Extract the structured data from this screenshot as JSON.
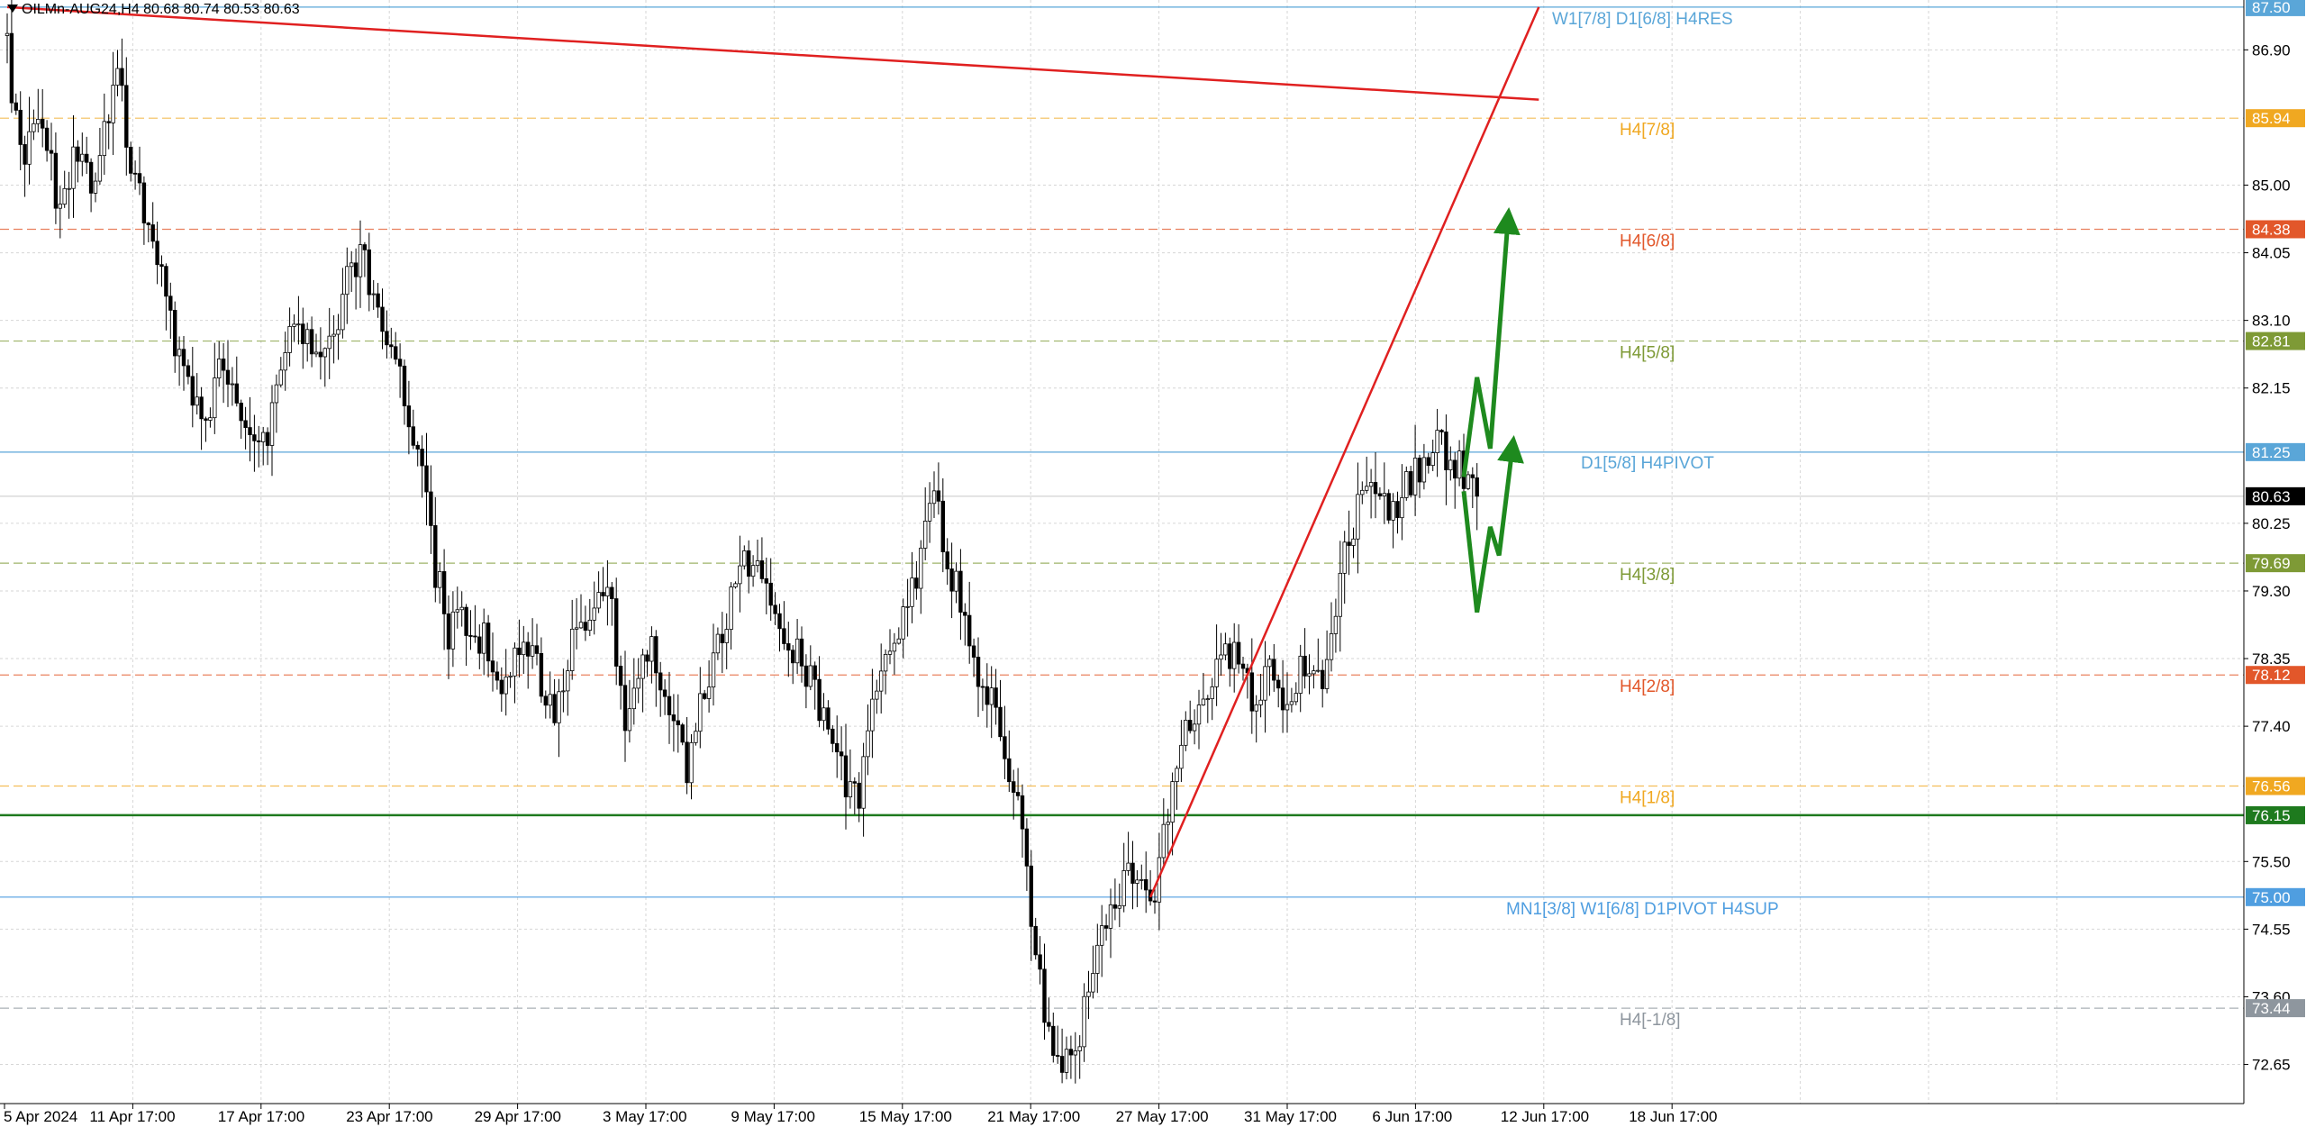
{
  "header": {
    "symbol_line": "OILMn-AUG24,H4  80.68 80.74 80.53 80.63"
  },
  "chart_data": {
    "type": "candlestick",
    "symbol": "OILMn-AUG24",
    "timeframe": "H4",
    "ohlc_current": {
      "open": 80.68,
      "high": 80.74,
      "low": 80.53,
      "close": 80.63
    },
    "current_price_label": "80.63",
    "ylim": [
      72.1,
      87.6
    ],
    "price_ticks": [
      "86.90",
      "85.00",
      "84.05",
      "83.10",
      "82.15",
      "80.25",
      "79.30",
      "78.35",
      "77.40",
      "75.50",
      "74.55",
      "73.60",
      "72.65"
    ],
    "time_ticks": [
      "5 Apr 2024",
      "11 Apr 17:00",
      "17 Apr 17:00",
      "23 Apr 17:00",
      "29 Apr 17:00",
      "3 May 17:00",
      "9 May 17:00",
      "15 May 17:00",
      "21 May 17:00",
      "27 May 17:00",
      "31 May 17:00",
      "6 Jun 17:00",
      "12 Jun 17:00",
      "18 Jun 17:00"
    ],
    "price_path": [
      [
        0,
        86.9
      ],
      [
        3,
        85.4
      ],
      [
        8,
        85.9
      ],
      [
        12,
        84.6
      ],
      [
        16,
        85.5
      ],
      [
        19,
        84.9
      ],
      [
        22,
        85.7
      ],
      [
        25,
        86.8
      ],
      [
        28,
        85.0
      ],
      [
        32,
        84.6
      ],
      [
        36,
        83.3
      ],
      [
        40,
        82.2
      ],
      [
        44,
        81.6
      ],
      [
        48,
        82.3
      ],
      [
        52,
        81.9
      ],
      [
        56,
        81.3
      ],
      [
        59,
        81.6
      ],
      [
        62,
        82.6
      ],
      [
        65,
        83.2
      ],
      [
        68,
        82.8
      ],
      [
        71,
        82.4
      ],
      [
        74,
        82.9
      ],
      [
        77,
        83.8
      ],
      [
        80,
        84.0
      ],
      [
        84,
        83.4
      ],
      [
        88,
        82.6
      ],
      [
        91,
        81.8
      ],
      [
        94,
        80.9
      ],
      [
        97,
        79.6
      ],
      [
        100,
        78.7
      ],
      [
        104,
        78.9
      ],
      [
        108,
        78.6
      ],
      [
        112,
        77.9
      ],
      [
        116,
        78.5
      ],
      [
        120,
        78.2
      ],
      [
        124,
        77.6
      ],
      [
        128,
        78.5
      ],
      [
        132,
        79.1
      ],
      [
        136,
        79.4
      ],
      [
        140,
        77.6
      ],
      [
        143,
        78.2
      ],
      [
        146,
        78.5
      ],
      [
        150,
        77.8
      ],
      [
        154,
        76.8
      ],
      [
        158,
        78.0
      ],
      [
        162,
        78.8
      ],
      [
        166,
        79.6
      ],
      [
        170,
        79.9
      ],
      [
        174,
        79.1
      ],
      [
        178,
        78.5
      ],
      [
        182,
        78.1
      ],
      [
        186,
        77.4
      ],
      [
        190,
        76.5
      ],
      [
        193,
        76.4
      ],
      [
        196,
        77.9
      ],
      [
        200,
        78.6
      ],
      [
        204,
        79.0
      ],
      [
        207,
        79.9
      ],
      [
        210,
        80.6
      ],
      [
        213,
        79.7
      ],
      [
        216,
        79.2
      ],
      [
        220,
        77.9
      ],
      [
        224,
        77.6
      ],
      [
        228,
        76.6
      ],
      [
        231,
        75.3
      ],
      [
        234,
        73.8
      ],
      [
        238,
        72.5
      ],
      [
        242,
        72.8
      ],
      [
        245,
        73.7
      ],
      [
        249,
        74.7
      ],
      [
        253,
        75.3
      ],
      [
        257,
        75.2
      ],
      [
        260,
        75.2
      ],
      [
        263,
        76.1
      ],
      [
        266,
        77.4
      ],
      [
        270,
        77.6
      ],
      [
        274,
        78.3
      ],
      [
        278,
        78.5
      ],
      [
        282,
        77.7
      ],
      [
        286,
        78.1
      ],
      [
        290,
        77.8
      ],
      [
        294,
        78.3
      ],
      [
        298,
        77.8
      ],
      [
        302,
        79.6
      ],
      [
        306,
        80.4
      ],
      [
        310,
        80.8
      ],
      [
        314,
        80.4
      ],
      [
        318,
        80.9
      ],
      [
        322,
        81.3
      ],
      [
        325,
        81.3
      ],
      [
        328,
        81.1
      ],
      [
        331,
        80.8
      ],
      [
        333,
        80.63
      ]
    ],
    "levels": [
      {
        "price": 87.5,
        "label": "W1[7/8] D1[6/8] H4RES",
        "axis_label": "87.50",
        "color": "#5aa6d8",
        "style": "solid"
      },
      {
        "price": 85.94,
        "label": "H4[7/8]",
        "axis_label": "85.94",
        "color": "#f0a821",
        "style": "dashed"
      },
      {
        "price": 84.38,
        "label": "H4[6/8]",
        "axis_label": "84.38",
        "color": "#e2572a",
        "style": "dashed"
      },
      {
        "price": 82.81,
        "label": "H4[5/8]",
        "axis_label": "82.81",
        "color": "#7e9a36",
        "style": "dashed"
      },
      {
        "price": 81.25,
        "label": "D1[5/8] H4PIVOT",
        "axis_label": "81.25",
        "color": "#5aa6d8",
        "style": "solid"
      },
      {
        "price": 79.69,
        "label": "H4[3/8]",
        "axis_label": "79.69",
        "color": "#7e9a36",
        "style": "dashed"
      },
      {
        "price": 78.12,
        "label": "H4[2/8]",
        "axis_label": "78.12",
        "color": "#e2572a",
        "style": "dashed"
      },
      {
        "price": 76.56,
        "label": "H4[1/8]",
        "axis_label": "76.56",
        "color": "#f0a821",
        "style": "dashed"
      },
      {
        "price": 76.15,
        "label": "",
        "axis_label": "76.15",
        "color": "#1e7a1e",
        "style": "solid-bold"
      },
      {
        "price": 75.0,
        "label": "MN1[3/8] W1[6/8] D1PIVOT H4SUP",
        "axis_label": "75.00",
        "color": "#4f9ee0",
        "style": "solid"
      },
      {
        "price": 73.44,
        "label": "H4[-1/8]",
        "axis_label": "73.44",
        "color": "#8e969e",
        "style": "dashed"
      }
    ],
    "trendlines": [
      {
        "name": "upper-resistance",
        "color": "#e02020",
        "from": [
          0,
          87.5
        ],
        "to": [
          347,
          86.2
        ]
      },
      {
        "name": "rising-support",
        "color": "#e02020",
        "from": [
          259,
          75.0
        ],
        "to": [
          347,
          87.5
        ]
      }
    ],
    "forecast_arrows": [
      {
        "scenario": "bullish",
        "color": "#1e8a1e",
        "path": [
          [
            330,
            80.9
          ],
          [
            333,
            82.3
          ],
          [
            336,
            81.3
          ],
          [
            340,
            84.5
          ]
        ]
      },
      {
        "scenario": "bearish-then-bullish",
        "color": "#1e8a1e",
        "path": [
          [
            330,
            80.7
          ],
          [
            333,
            79.0
          ],
          [
            336,
            80.2
          ],
          [
            338,
            79.8
          ],
          [
            341,
            81.3
          ]
        ]
      }
    ],
    "grid": true,
    "colors": {
      "bull_body": "#ffffff",
      "bear_body": "#000000",
      "wick": "#000000",
      "current_label_bg": "#000000"
    }
  }
}
